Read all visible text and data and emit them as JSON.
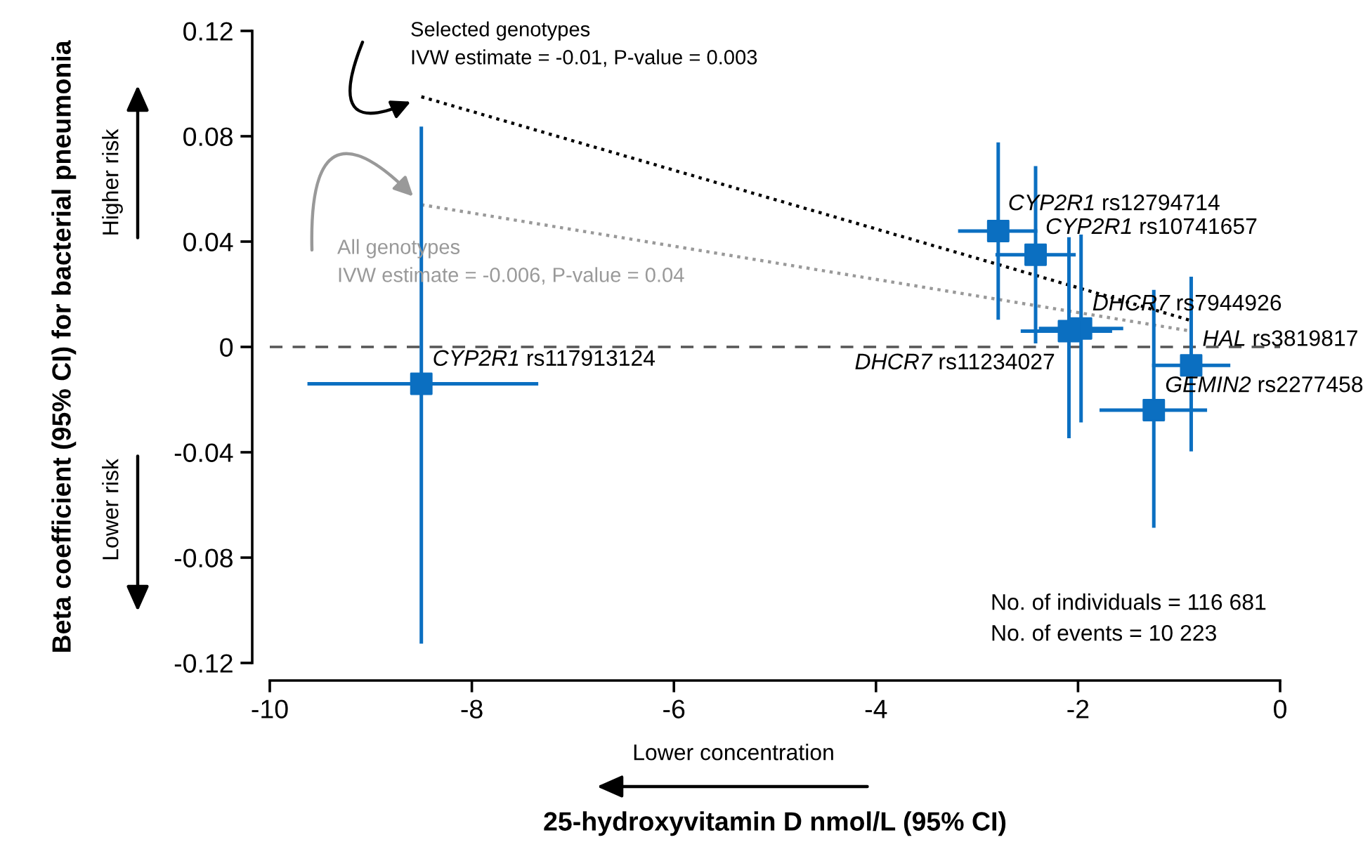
{
  "chart_data": {
    "type": "scatter",
    "xlabel": "25-hydroxyvitamin D nmol/L (95% CI)",
    "ylabel": "Beta coefficient (95% CI) for bacterial pneumonia",
    "xlim": [
      -10,
      0
    ],
    "ylim": [
      -0.12,
      0.12
    ],
    "xticks": [
      -10,
      -8,
      -6,
      -4,
      -2,
      0
    ],
    "yticks": [
      -0.12,
      -0.08,
      -0.04,
      0,
      0.04,
      0.08,
      0.12
    ],
    "marker": "square",
    "grid": false,
    "legend": false,
    "series": [
      {
        "type": "line",
        "marker": "none",
        "line_style": "dotted",
        "color": "#000000",
        "x": [
          -8.5,
          -0.88
        ],
        "values": [
          0.095,
          0.01
        ]
      },
      {
        "type": "line",
        "marker": "none",
        "line_style": "dotted",
        "color": "#999999",
        "x": [
          -8.5,
          -0.88
        ],
        "values": [
          0.054,
          0.006
        ]
      },
      {
        "name": "CYP2R1 rs117913124",
        "color": "#0b6fc1",
        "x": [
          -8.5
        ],
        "values": [
          -0.014
        ],
        "errors": [
          [
            -0.112,
            0.083
          ]
        ],
        "xerrors": [
          [
            -9.61,
            -7.36
          ]
        ]
      },
      {
        "name": "CYP2R1 rs12794714",
        "color": "#0b6fc1",
        "x": [
          -2.79
        ],
        "values": [
          0.044
        ],
        "errors": [
          [
            0.011,
            0.077
          ]
        ],
        "xerrors": [
          [
            -3.17,
            -2.42
          ]
        ]
      },
      {
        "name": "CYP2R1 rs10741657",
        "color": "#0b6fc1",
        "x": [
          -2.42
        ],
        "values": [
          0.035
        ],
        "errors": [
          [
            0.002,
            0.068
          ]
        ],
        "xerrors": [
          [
            -2.8,
            -2.04
          ]
        ]
      },
      {
        "name": "DHCR7 rs7944926",
        "color": "#0b6fc1",
        "x": [
          -1.97
        ],
        "values": [
          0.007
        ],
        "errors": [
          [
            -0.028,
            0.042
          ]
        ],
        "xerrors": [
          [
            -2.37,
            -1.57
          ]
        ]
      },
      {
        "name": "DHCR7 rs11234027",
        "color": "#0b6fc1",
        "x": [
          -2.09
        ],
        "values": [
          0.006
        ],
        "errors": [
          [
            -0.034,
            0.041
          ]
        ],
        "xerrors": [
          [
            -2.55,
            -1.68
          ]
        ]
      },
      {
        "name": "HAL rs3819817",
        "color": "#0b6fc1",
        "x": [
          -0.88
        ],
        "values": [
          -0.007
        ],
        "errors": [
          [
            -0.039,
            0.026
          ]
        ],
        "xerrors": [
          [
            -1.25,
            -0.51
          ]
        ]
      },
      {
        "name": "GEMIN2 rs2277458",
        "color": "#0b6fc1",
        "x": [
          -1.25
        ],
        "values": [
          -0.024
        ],
        "errors": [
          [
            -0.068,
            0.021
          ]
        ],
        "xerrors": [
          [
            -1.77,
            -0.74
          ]
        ]
      }
    ],
    "ref_lines": [
      {
        "axis": "y",
        "value": 0,
        "color": "#555555",
        "line_style": "dashed"
      }
    ],
    "annotations": [
      {
        "text": "Selected genotypes\nIVW estimate = -0.01, P-value = 0.003",
        "x": -8.5,
        "y": 0.095
      },
      {
        "text": "All genotypes\nIVW estimate = -0.006, P-value = 0.04",
        "x": -8.5,
        "y": 0.054
      },
      "Higher risk",
      "Lower risk",
      "Lower concentration",
      "No. of individuals = 116 681",
      "No. of events = 10 223"
    ]
  }
}
